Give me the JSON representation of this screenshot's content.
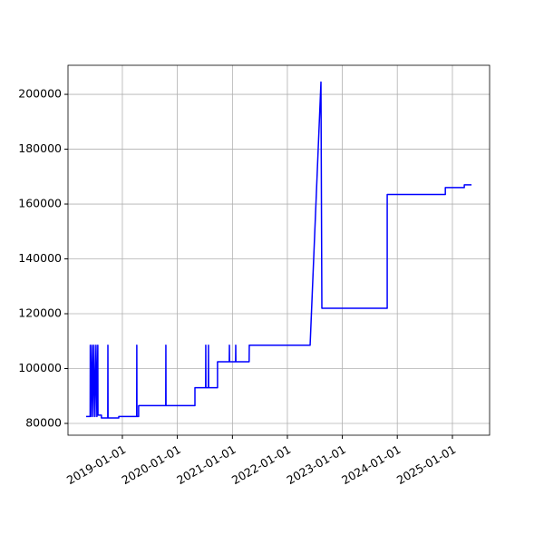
{
  "chart_data": {
    "type": "line",
    "color": "#0000ff",
    "grid": true,
    "x": [
      "2018-05-05",
      "2018-06-01",
      "2018-06-02",
      "2018-06-08",
      "2018-06-14",
      "2018-06-20",
      "2018-06-26",
      "2018-07-03",
      "2018-07-10",
      "2018-07-16",
      "2018-07-22",
      "2018-07-23",
      "2018-08-15",
      "2018-08-15",
      "2018-09-26",
      "2018-09-27",
      "2018-09-28",
      "2018-12-08",
      "2018-12-08",
      "2019-04-06",
      "2019-04-07",
      "2019-04-08",
      "2019-04-19",
      "2019-04-19",
      "2019-10-16",
      "2019-10-17",
      "2019-10-18",
      "2020-04-27",
      "2020-04-27",
      "2020-07-07",
      "2020-07-08",
      "2020-07-09",
      "2020-07-25",
      "2020-07-26",
      "2020-07-27",
      "2020-09-24",
      "2020-09-24",
      "2020-12-11",
      "2020-12-12",
      "2020-12-13",
      "2021-01-22",
      "2021-01-23",
      "2021-01-24",
      "2021-04-22",
      "2021-04-23",
      "2022-06-01",
      "2022-08-12",
      "2022-08-18",
      "2023-10-26",
      "2023-10-26",
      "2024-11-15",
      "2024-11-15",
      "2025-03-21",
      "2025-03-21",
      "2025-05-08"
    ],
    "values": [
      82500,
      82500,
      108500,
      82500,
      108500,
      82500,
      108500,
      82500,
      108500,
      82500,
      108500,
      83000,
      83000,
      82000,
      82000,
      108500,
      82000,
      82000,
      82500,
      82500,
      108500,
      82500,
      82500,
      86500,
      86500,
      108500,
      86500,
      86500,
      93000,
      93000,
      108500,
      93000,
      93000,
      108500,
      93000,
      93000,
      102500,
      102500,
      108500,
      102500,
      102500,
      108500,
      102500,
      102500,
      108500,
      108500,
      204500,
      122000,
      122000,
      163500,
      163500,
      166000,
      166000,
      167000,
      167000
    ],
    "xlim": [
      "2018-01-05",
      "2025-09-05"
    ],
    "xticks": [
      "2019-01-01",
      "2020-01-01",
      "2021-01-01",
      "2022-01-01",
      "2023-01-01",
      "2024-01-01",
      "2025-01-01"
    ],
    "ylim": [
      75700,
      210600
    ],
    "yticks": [
      80000,
      100000,
      120000,
      140000,
      160000,
      180000,
      200000
    ]
  }
}
